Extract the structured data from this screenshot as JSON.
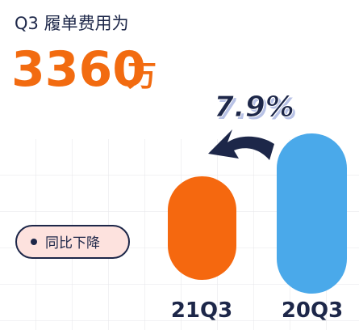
{
  "header": {
    "title": "Q3 履单费用为",
    "amount": "3360",
    "unit": "万"
  },
  "change": "7.9%",
  "badge": "同比下降",
  "bars": [
    {
      "label": "21Q3"
    },
    {
      "label": "20Q3"
    }
  ]
}
